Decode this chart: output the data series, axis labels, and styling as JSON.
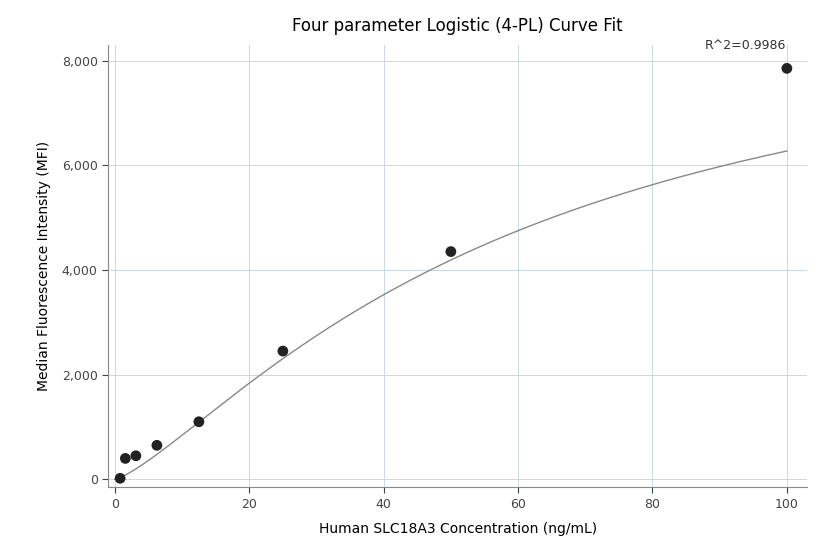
{
  "title": "Four parameter Logistic (4-PL) Curve Fit",
  "xlabel": "Human SLC18A3 Concentration (ng/mL)",
  "ylabel": "Median Fluorescence Intensity (MFI)",
  "scatter_x": [
    0.78,
    1.56,
    3.125,
    6.25,
    12.5,
    25,
    50,
    100
  ],
  "scatter_y": [
    20,
    400,
    450,
    650,
    1100,
    2450,
    4350,
    7850
  ],
  "xlim": [
    -1,
    103
  ],
  "ylim": [
    -150,
    8300
  ],
  "xticks": [
    0,
    20,
    40,
    60,
    80,
    100
  ],
  "yticks": [
    0,
    2000,
    4000,
    6000,
    8000
  ],
  "ytick_labels": [
    "0",
    "2,000",
    "4,000",
    "6,000",
    "8,000"
  ],
  "r_squared_label": "R^2=0.9986",
  "curve_color": "#888888",
  "scatter_color": "#222222",
  "grid_color": "#c8d8e8",
  "bg_color": "#ffffff",
  "title_fontsize": 12,
  "label_fontsize": 10,
  "tick_fontsize": 9,
  "annotation_fontsize": 9
}
